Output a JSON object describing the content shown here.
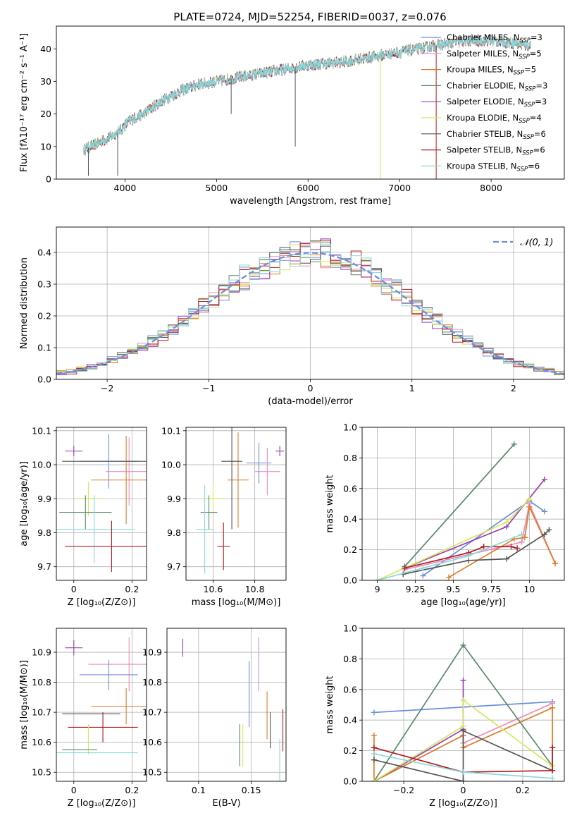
{
  "figure_title": "PLATE=0724, MJD=52254, FIBERID=0037, z=0.076",
  "legend_models": [
    {
      "label": "Chabrier MILES, N",
      "sub": "SSP",
      "tail": "=3",
      "color": "#6b8fde"
    },
    {
      "label": "Salpeter MILES, N",
      "sub": "SSP",
      "tail": "=5",
      "color": "#e88cc0"
    },
    {
      "label": "Kroupa MILES, N",
      "sub": "SSP",
      "tail": "=5",
      "color": "#e07b24"
    },
    {
      "label": "Chabrier ELODIE, N",
      "sub": "SSP",
      "tail": "=3",
      "color": "#5a8a6a"
    },
    {
      "label": "Salpeter ELODIE, N",
      "sub": "SSP",
      "tail": "=3",
      "color": "#9b3fb5"
    },
    {
      "label": "Kroupa ELODIE, N",
      "sub": "SSP",
      "tail": "=4",
      "color": "#d4e85c"
    },
    {
      "label": "Chabrier STELIB, N",
      "sub": "SSP",
      "tail": "=6",
      "color": "#555555"
    },
    {
      "label": "Salpeter STELIB, N",
      "sub": "SSP",
      "tail": "=6",
      "color": "#b31b1b"
    },
    {
      "label": "Kroupa STELIB, N",
      "sub": "SSP",
      "tail": "=6",
      "color": "#8ad8dc"
    }
  ],
  "chart_data": [
    {
      "type": "line",
      "id": "spectrum",
      "xlabel": "wavelength [Angstrom, rest frame]",
      "ylabel": "Flux [fλ10⁻¹⁷ erg cm⁻² s⁻¹ A⁻¹]",
      "xlim": [
        3250,
        8800
      ],
      "ylim": [
        0,
        47
      ],
      "xticks": [
        4000,
        5000,
        6000,
        7000,
        8000
      ],
      "yticks": [
        0,
        10,
        20,
        30,
        40
      ],
      "grid": false,
      "legend": "top-right",
      "continuum_x": [
        3550,
        3700,
        3850,
        3950,
        4050,
        4200,
        4400,
        4600,
        4800,
        5000,
        5200,
        5400,
        5600,
        5800,
        6000,
        6200,
        6400,
        6600,
        6800,
        7000,
        7200,
        7400,
        7600,
        7800,
        8000,
        8200,
        8400
      ],
      "continuum_y": [
        9,
        11,
        13,
        15,
        18,
        20,
        24,
        27,
        29,
        30,
        31,
        32,
        33,
        34,
        35,
        35.5,
        36,
        37,
        38,
        39,
        40,
        41,
        42,
        42.5,
        42.5,
        42,
        41
      ],
      "spikes": [
        {
          "x": 3600,
          "y": 1
        },
        {
          "x": 3920,
          "y": 1
        },
        {
          "x": 5160,
          "y": 20
        },
        {
          "x": 5860,
          "y": 10
        },
        {
          "x": 6790,
          "y": 0
        },
        {
          "x": 7400,
          "y": 0
        }
      ]
    },
    {
      "type": "step",
      "id": "residual_histogram",
      "xlabel": "(data-model)/error",
      "ylabel": "Normed distribution",
      "xlim": [
        -2.5,
        2.5
      ],
      "ylim": [
        0,
        0.48
      ],
      "xticks": [
        -2,
        -1,
        0,
        1,
        2
      ],
      "yticks": [
        0.0,
        0.1,
        0.2,
        0.3,
        0.4
      ],
      "grid": true,
      "legend": "top-right",
      "reference_label": "𝒩(0, 1)",
      "reference_color": "#6b8fde",
      "bin_width": 0.1
    },
    {
      "type": "errorbar",
      "id": "age_vs_Z",
      "xlabel": "Z [log₁₀(Z/Z⊙)]",
      "ylabel": "age  [log₁₀(age/yr)]",
      "xlim": [
        -0.06,
        0.25
      ],
      "ylim": [
        9.66,
        10.11
      ],
      "xticks": [
        0.0,
        0.2
      ],
      "yticks": [
        9.7,
        9.8,
        9.9,
        10.0,
        10.1
      ],
      "grid": true,
      "points": [
        {
          "x": 0.0,
          "y": 10.04,
          "ex": 0.03,
          "ey": 0.015,
          "model": 4
        },
        {
          "x": 0.12,
          "y": 10.01,
          "ex": 0.1,
          "ey": 0.08,
          "model": 0
        },
        {
          "x": 0.19,
          "y": 9.98,
          "ex": 0.08,
          "ey": 0.1,
          "model": 1
        },
        {
          "x": 0.18,
          "y": 9.955,
          "ex": 0.12,
          "ey": 0.13,
          "model": 2
        },
        {
          "x": 0.12,
          "y": 10.01,
          "ex": 0.16,
          "ey": 0.0,
          "model": 6
        },
        {
          "x": 0.05,
          "y": 9.9,
          "ex": 0.04,
          "ey": 0.05,
          "model": 5
        },
        {
          "x": 0.04,
          "y": 9.86,
          "ex": 0.09,
          "ey": 0.05,
          "model": 3
        },
        {
          "x": 0.07,
          "y": 9.81,
          "ex": 0.14,
          "ey": 0.1,
          "model": 8
        },
        {
          "x": 0.13,
          "y": 9.76,
          "ex": 0.16,
          "ey": 0.075,
          "model": 7
        }
      ]
    },
    {
      "type": "errorbar",
      "id": "age_vs_mass",
      "xlabel": "mass [log₁₀(M/M⊙)]",
      "ylabel": "",
      "xlim": [
        10.47,
        10.95
      ],
      "ylim": [
        9.66,
        10.11
      ],
      "xticks": [
        10.6,
        10.8
      ],
      "yticks": [
        9.7,
        9.8,
        9.9,
        10.0,
        10.1
      ],
      "grid": true,
      "points": [
        {
          "x": 10.92,
          "y": 10.04,
          "ex": 0.02,
          "ey": 0.015,
          "model": 4
        },
        {
          "x": 10.82,
          "y": 10.005,
          "ex": 0.06,
          "ey": 0.06,
          "model": 0
        },
        {
          "x": 10.86,
          "y": 9.98,
          "ex": 0.06,
          "ey": 0.07,
          "model": 1
        },
        {
          "x": 10.72,
          "y": 9.955,
          "ex": 0.05,
          "ey": 0.14,
          "model": 2
        },
        {
          "x": 10.69,
          "y": 10.01,
          "ex": 0.05,
          "ey": 0.2,
          "model": 6
        },
        {
          "x": 10.6,
          "y": 9.9,
          "ex": 0.05,
          "ey": 0.04,
          "model": 5
        },
        {
          "x": 10.58,
          "y": 9.86,
          "ex": 0.04,
          "ey": 0.05,
          "model": 3
        },
        {
          "x": 10.56,
          "y": 9.81,
          "ex": 0.04,
          "ey": 0.13,
          "model": 8
        },
        {
          "x": 10.65,
          "y": 9.76,
          "ex": 0.03,
          "ey": 0.07,
          "model": 7
        }
      ]
    },
    {
      "type": "line",
      "id": "mass_weight_vs_age",
      "xlabel": "age  [log₁₀(age/yr)]",
      "ylabel": "mass weight",
      "xlim": [
        8.9,
        10.23
      ],
      "ylim": [
        0,
        1.0
      ],
      "xticks": [
        9.0,
        9.25,
        9.5,
        9.75,
        10.0
      ],
      "yticks": [
        0.0,
        0.2,
        0.4,
        0.6,
        0.8,
        1.0
      ],
      "grid": true,
      "series": [
        {
          "model": 0,
          "x": [
            9.3,
            10.0,
            10.1
          ],
          "y": [
            0.03,
            0.52,
            0.45
          ]
        },
        {
          "model": 1,
          "x": [
            9.18,
            9.95,
            10.0,
            10.17
          ],
          "y": [
            0.07,
            0.25,
            0.5,
            0.11
          ]
        },
        {
          "model": 2,
          "x": [
            9.47,
            9.9,
            9.97,
            10.0,
            10.17
          ],
          "y": [
            0.02,
            0.27,
            0.28,
            0.48,
            0.11
          ]
        },
        {
          "model": 3,
          "x": [
            9.18,
            9.9
          ],
          "y": [
            0.09,
            0.89
          ]
        },
        {
          "model": 4,
          "x": [
            9.18,
            9.85,
            10.1
          ],
          "y": [
            0.08,
            0.35,
            0.66
          ]
        },
        {
          "model": 5,
          "x": [
            9.0,
            9.85,
            10.0
          ],
          "y": [
            0.0,
            0.38,
            0.53
          ]
        },
        {
          "model": 6,
          "x": [
            9.17,
            9.6,
            9.85,
            10.1,
            10.13
          ],
          "y": [
            0.04,
            0.13,
            0.14,
            0.3,
            0.33
          ]
        },
        {
          "model": 7,
          "x": [
            9.18,
            9.6,
            9.7,
            9.88,
            9.92
          ],
          "y": [
            0.08,
            0.18,
            0.22,
            0.22,
            0.21
          ]
        },
        {
          "model": 8,
          "x": [
            9.0,
            9.3,
            9.6,
            9.95
          ],
          "y": [
            0.0,
            0.08,
            0.16,
            0.3
          ]
        }
      ]
    },
    {
      "type": "errorbar",
      "id": "mass_vs_Z",
      "xlabel": "Z [log₁₀(Z/Z⊙)]",
      "ylabel": "mass [log₁₀(M/M⊙)]",
      "xlim": [
        -0.06,
        0.25
      ],
      "ylim": [
        10.47,
        10.98
      ],
      "xticks": [
        0.0,
        0.2
      ],
      "yticks": [
        10.5,
        10.6,
        10.7,
        10.8,
        10.9
      ],
      "grid": true,
      "points": [
        {
          "x": 0.0,
          "y": 10.915,
          "ex": 0.03,
          "ey": 0.025,
          "model": 4
        },
        {
          "x": 0.19,
          "y": 10.86,
          "ex": 0.14,
          "ey": 0.09,
          "model": 1
        },
        {
          "x": 0.12,
          "y": 10.825,
          "ex": 0.1,
          "ey": 0.05,
          "model": 0
        },
        {
          "x": 0.18,
          "y": 10.72,
          "ex": 0.12,
          "ey": 0.06,
          "model": 2
        },
        {
          "x": 0.06,
          "y": 10.695,
          "ex": 0.1,
          "ey": 0.0,
          "model": 6
        },
        {
          "x": 0.1,
          "y": 10.65,
          "ex": 0.12,
          "ey": 0.05,
          "model": 7
        },
        {
          "x": 0.05,
          "y": 10.61,
          "ex": 0.0,
          "ey": 0.05,
          "model": 5
        },
        {
          "x": 0.02,
          "y": 10.575,
          "ex": 0.06,
          "ey": 0.0,
          "model": 3
        },
        {
          "x": 0.08,
          "y": 10.565,
          "ex": 0.14,
          "ey": 0.0,
          "model": 8
        }
      ]
    },
    {
      "type": "errorbar",
      "id": "mass_vs_EBV",
      "xlabel": "E(B-V)",
      "ylabel": "",
      "xlim": [
        0.07,
        0.183
      ],
      "ylim": [
        10.47,
        10.98
      ],
      "xticks": [
        0.1,
        0.15
      ],
      "yticks": [
        10.5,
        10.6,
        10.7,
        10.8,
        10.9
      ],
      "grid": true,
      "points": [
        {
          "x": 0.085,
          "y": 10.915,
          "ex": 0,
          "ey": 0.03,
          "model": 4
        },
        {
          "x": 0.157,
          "y": 10.86,
          "ex": 0,
          "ey": 0.09,
          "model": 1
        },
        {
          "x": 0.148,
          "y": 10.76,
          "ex": 0,
          "ey": 0.11,
          "model": 0
        },
        {
          "x": 0.165,
          "y": 10.69,
          "ex": 0,
          "ey": 0.08,
          "model": 2
        },
        {
          "x": 0.168,
          "y": 10.64,
          "ex": 0,
          "ey": 0.06,
          "model": 6
        },
        {
          "x": 0.18,
          "y": 10.64,
          "ex": 0,
          "ey": 0.07,
          "model": 7
        },
        {
          "x": 0.142,
          "y": 10.59,
          "ex": 0,
          "ey": 0.07,
          "model": 5
        },
        {
          "x": 0.139,
          "y": 10.59,
          "ex": 0,
          "ey": 0.07,
          "model": 3
        },
        {
          "x": 0.177,
          "y": 10.54,
          "ex": 0,
          "ey": 0.07,
          "model": 8
        }
      ]
    },
    {
      "type": "line",
      "id": "mass_weight_vs_Z",
      "xlabel": "Z [log₁₀(Z/Z⊙)]",
      "ylabel": "mass weight",
      "xlim": [
        -0.34,
        0.34
      ],
      "ylim": [
        0,
        1.0
      ],
      "xticks": [
        -0.2,
        0.0,
        0.2
      ],
      "yticks": [
        0.0,
        0.2,
        0.4,
        0.6,
        0.8,
        1.0
      ],
      "grid": true,
      "series": [
        {
          "model": 0,
          "x": [
            -0.3,
            0.3
          ],
          "y": [
            0.45,
            0.52
          ]
        },
        {
          "model": 1,
          "x": [
            -0.3,
            0.0,
            0.0,
            0.3
          ],
          "y": [
            0.0,
            0.3,
            0.25,
            0.51
          ]
        },
        {
          "model": 2,
          "x": [
            -0.3,
            -0.3,
            0.0,
            0.0,
            0.3,
            0.3
          ],
          "y": [
            0.3,
            0.0,
            0.3,
            0.22,
            0.48,
            0.1
          ]
        },
        {
          "model": 3,
          "x": [
            -0.3,
            0.0,
            0.3
          ],
          "y": [
            0.0,
            0.89,
            0.1
          ]
        },
        {
          "model": 4,
          "x": [
            -0.3,
            0.0,
            0.0
          ],
          "y": [
            0.0,
            0.34,
            0.66
          ]
        },
        {
          "model": 5,
          "x": [
            -0.3,
            0.0,
            0.0,
            0.3
          ],
          "y": [
            0.0,
            0.36,
            0.53,
            0.1
          ]
        },
        {
          "model": 6,
          "x": [
            -0.3,
            0.0,
            0.0,
            0.3
          ],
          "y": [
            0.14,
            0.0,
            0.33,
            0.07
          ]
        },
        {
          "model": 7,
          "x": [
            -0.3,
            0.0,
            0.3,
            0.3
          ],
          "y": [
            0.22,
            0.06,
            0.07,
            0.22
          ]
        },
        {
          "model": 8,
          "x": [
            -0.3,
            0.0,
            0.3
          ],
          "y": [
            0.18,
            0.06,
            0.02
          ]
        }
      ]
    }
  ]
}
